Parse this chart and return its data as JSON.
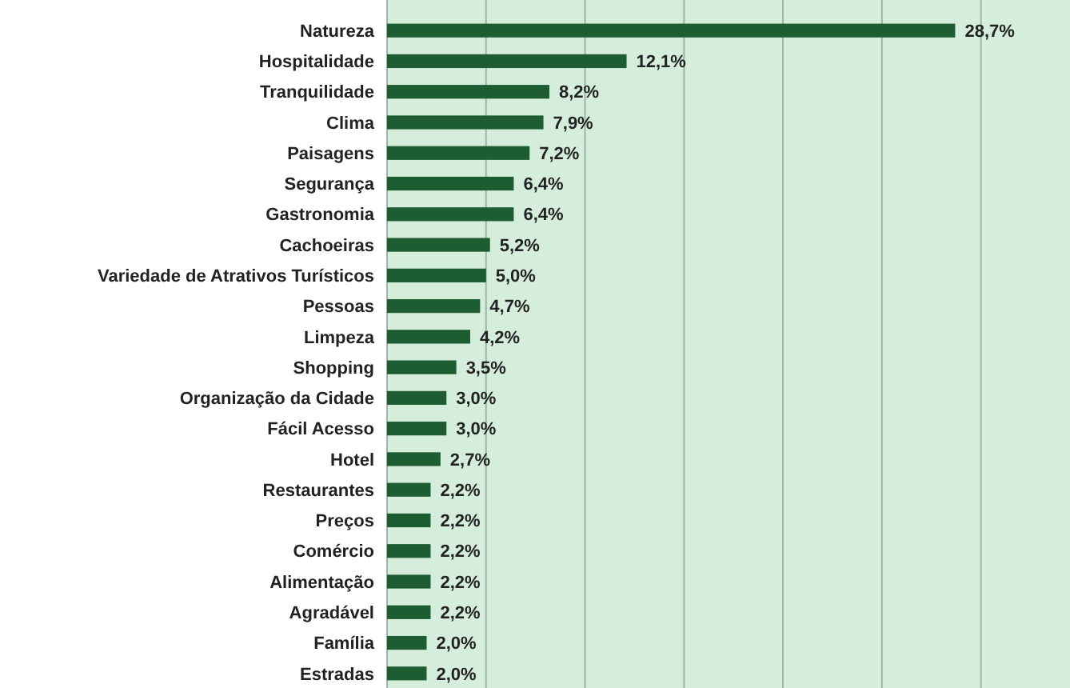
{
  "chart_data": {
    "type": "bar",
    "orientation": "horizontal",
    "categories": [
      "Natureza",
      "Hospitalidade",
      "Tranquilidade",
      "Clima",
      "Paisagens",
      "Segurança",
      "Gastronomia",
      "Cachoeiras",
      "Variedade de Atrativos Turísticos",
      "Pessoas",
      "Limpeza",
      "Shopping",
      "Organização da Cidade",
      "Fácil Acesso",
      "Hotel",
      "Restaurantes",
      "Preços",
      "Comércio",
      "Alimentação",
      "Agradável",
      "Família",
      "Estradas"
    ],
    "values": [
      28.7,
      12.1,
      8.2,
      7.9,
      7.2,
      6.4,
      6.4,
      5.2,
      5.0,
      4.7,
      4.2,
      3.5,
      3.0,
      3.0,
      2.7,
      2.2,
      2.2,
      2.2,
      2.2,
      2.2,
      2.0,
      2.0
    ],
    "value_labels": [
      "28,7%",
      "12,1%",
      "8,2%",
      "7,9%",
      "7,2%",
      "6,4%",
      "6,4%",
      "5,2%",
      "5,0%",
      "4,7%",
      "4,2%",
      "3,5%",
      "3,0%",
      "3,0%",
      "2,7%",
      "2,2%",
      "2,2%",
      "2,2%",
      "2,2%",
      "2,2%",
      "2,0%",
      "2,0%"
    ],
    "color": "#1e5c32",
    "xlim": [
      0,
      34.5
    ],
    "xticks": [
      {
        "value": 0,
        "label": null
      },
      {
        "value": 5,
        "label": null
      },
      {
        "value": 10,
        "label": null
      },
      {
        "value": 15,
        "label": null
      },
      {
        "value": 20,
        "label": null
      },
      {
        "value": 25,
        "label": null
      },
      {
        "value": 30,
        "label": null
      }
    ],
    "grid": "x",
    "tick_labels": "y"
  }
}
